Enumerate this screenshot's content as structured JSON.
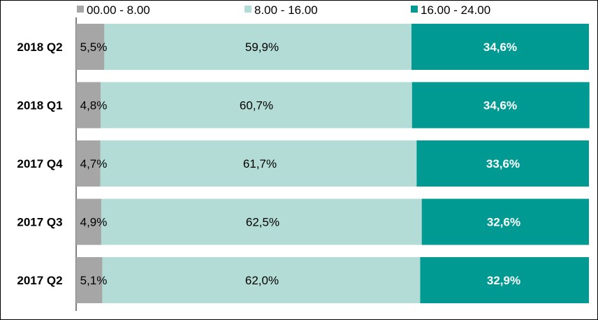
{
  "chart_data": {
    "type": "bar",
    "orientation": "horizontal",
    "stacked": true,
    "percent_stacked": true,
    "categories": [
      "2018 Q2",
      "2018 Q1",
      "2017 Q4",
      "2017 Q3",
      "2017 Q2"
    ],
    "series": [
      {
        "name": "00.00 - 8.00",
        "color": "#a6a6a6",
        "values": [
          5.5,
          4.8,
          4.7,
          4.9,
          5.1
        ],
        "labels": [
          "5,5%",
          "4,8%",
          "4,7%",
          "4,9%",
          "5,1%"
        ]
      },
      {
        "name": "8.00 - 16.00",
        "color": "#b2dcd5",
        "values": [
          59.9,
          60.7,
          61.7,
          62.5,
          62.0
        ],
        "labels": [
          "59,9%",
          "60,7%",
          "61,7%",
          "62,5%",
          "62,0%"
        ]
      },
      {
        "name": "16.00 - 24.00",
        "color": "#009a93",
        "values": [
          34.6,
          34.6,
          33.6,
          32.6,
          32.9
        ],
        "labels": [
          "34,6%",
          "34,6%",
          "33,6%",
          "32,6%",
          "32,9%"
        ]
      }
    ],
    "xlim": [
      0,
      100
    ],
    "legend_position": "top",
    "grid": false,
    "title": "",
    "xlabel": "",
    "ylabel": ""
  }
}
